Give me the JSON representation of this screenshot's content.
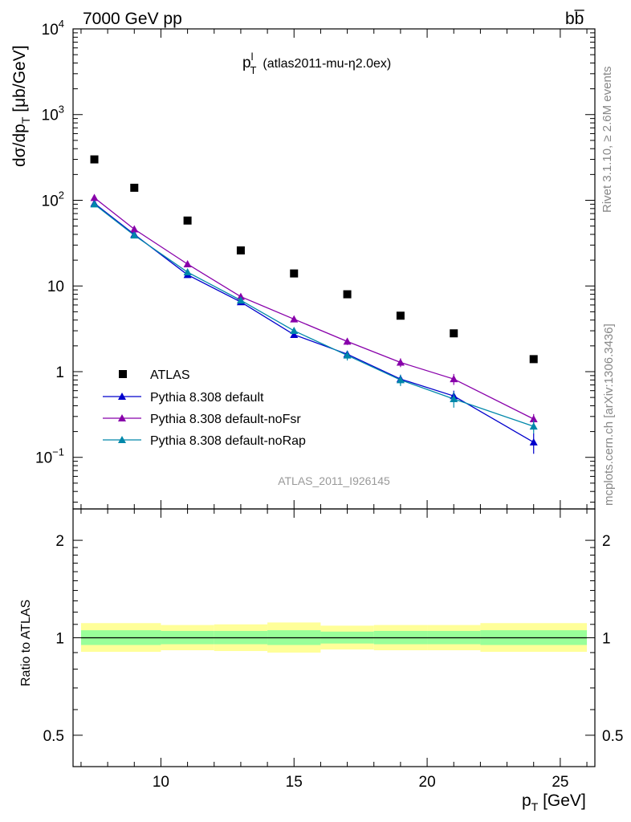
{
  "header": {
    "left": "7000 GeV pp",
    "right": "bb̅"
  },
  "side_text": {
    "rivet": "Rivet 3.1.10, ≥ 2.6M events",
    "mcplots": "mcplots.cern.ch [arXiv:1306.3436]"
  },
  "colors": {
    "atlas": "#000000",
    "default": "#0000cc",
    "noFsr": "#8800aa",
    "noRap": "#0088aa",
    "band_inner": "#99ff99",
    "band_outer": "#ffff99",
    "side_text": "#888888"
  },
  "chart_data": [
    {
      "type": "line",
      "panel": "main",
      "title": "p_T^l (atlas2011-mu-η2.0ex)",
      "title_parts": {
        "base": "p",
        "sub": "T",
        "sup": "l",
        "rest": "(atlas2011-mu-η2.0ex)"
      },
      "ylabel": "dσ/dp_T [μb/GeV]",
      "ylabel_parts": {
        "a": "dσ/dp",
        "sub": "T",
        "b": " [μb/GeV]"
      },
      "analysis_label": "ATLAS_2011_I926145",
      "yscale": "log",
      "ylim": [
        0.025,
        10000
      ],
      "xlim": [
        6.7,
        26.3
      ],
      "y_ticks": [
        {
          "value": 0.1,
          "base": "10",
          "exp": "−1"
        },
        {
          "value": 1,
          "base": "1",
          "exp": ""
        },
        {
          "value": 10,
          "base": "10",
          "exp": ""
        },
        {
          "value": 100,
          "base": "10",
          "exp": "2"
        },
        {
          "value": 1000,
          "base": "10",
          "exp": "3"
        },
        {
          "value": 10000,
          "base": "10",
          "exp": "4"
        }
      ],
      "legend_position": "lower-left",
      "series": [
        {
          "name": "ATLAS",
          "style": "points",
          "marker": "square",
          "color_key": "atlas",
          "x": [
            7.5,
            9,
            11,
            13,
            15,
            17,
            19,
            21,
            24
          ],
          "y": [
            300,
            140,
            58,
            26,
            14,
            8,
            4.5,
            2.8,
            1.4
          ],
          "err": [
            0,
            0,
            0,
            0,
            0,
            0,
            0,
            0,
            0
          ]
        },
        {
          "name": "Pythia 8.308 default",
          "style": "line",
          "marker": "triangle",
          "color_key": "default",
          "x": [
            7.5,
            9,
            11,
            13,
            15,
            17,
            19,
            21,
            24
          ],
          "y": [
            92,
            40,
            13.5,
            6.5,
            2.7,
            1.6,
            0.82,
            0.52,
            0.15
          ],
          "err": [
            2,
            1,
            0.5,
            0.3,
            0.2,
            0.15,
            0.1,
            0.08,
            0.04
          ]
        },
        {
          "name": "Pythia 8.308 default-noFsr",
          "style": "line",
          "marker": "triangle",
          "color_key": "noFsr",
          "x": [
            7.5,
            9,
            11,
            13,
            15,
            17,
            19,
            21,
            24
          ],
          "y": [
            107,
            46,
            18,
            7.5,
            4.1,
            2.25,
            1.28,
            0.82,
            0.28
          ],
          "err": [
            2,
            1,
            0.6,
            0.3,
            0.2,
            0.2,
            0.15,
            0.12,
            0.04
          ]
        },
        {
          "name": "Pythia 8.308 default-noRap",
          "style": "line",
          "marker": "triangle",
          "color_key": "noRap",
          "x": [
            7.5,
            9,
            11,
            13,
            15,
            17,
            19,
            21,
            24
          ],
          "y": [
            90,
            39,
            14.5,
            6.8,
            3.0,
            1.55,
            0.8,
            0.48,
            0.23
          ],
          "err": [
            2,
            1,
            0.5,
            0.3,
            0.25,
            0.2,
            0.12,
            0.1,
            0.04
          ]
        }
      ]
    },
    {
      "type": "area",
      "panel": "ratio",
      "ylabel": "Ratio to ATLAS",
      "xlabel_parts": {
        "base": "p",
        "sub": "T",
        "rest": " [GeV]"
      },
      "yscale": "log",
      "ylim": [
        0.4,
        2.5
      ],
      "xlim": [
        6.7,
        26.3
      ],
      "y_ticks": [
        0.5,
        1,
        2
      ],
      "y_tick_labels": [
        "0.5",
        "1",
        "2"
      ],
      "x_ticks": [
        10,
        15,
        20,
        25
      ],
      "x_tick_labels": [
        "10",
        "15",
        "20",
        "25"
      ],
      "reference": 1,
      "band_bins": [
        {
          "lo": 7,
          "hi": 10,
          "inner": [
            0.95,
            1.055
          ],
          "outer": [
            0.905,
            1.11
          ]
        },
        {
          "lo": 10,
          "hi": 12,
          "inner": [
            0.955,
            1.05
          ],
          "outer": [
            0.915,
            1.095
          ]
        },
        {
          "lo": 12,
          "hi": 14,
          "inner": [
            0.955,
            1.05
          ],
          "outer": [
            0.91,
            1.1
          ]
        },
        {
          "lo": 14,
          "hi": 16,
          "inner": [
            0.95,
            1.055
          ],
          "outer": [
            0.9,
            1.115
          ]
        },
        {
          "lo": 16,
          "hi": 18,
          "inner": [
            0.96,
            1.045
          ],
          "outer": [
            0.92,
            1.09
          ]
        },
        {
          "lo": 18,
          "hi": 20,
          "inner": [
            0.955,
            1.05
          ],
          "outer": [
            0.915,
            1.095
          ]
        },
        {
          "lo": 20,
          "hi": 22,
          "inner": [
            0.955,
            1.05
          ],
          "outer": [
            0.915,
            1.095
          ]
        },
        {
          "lo": 22,
          "hi": 26,
          "inner": [
            0.95,
            1.055
          ],
          "outer": [
            0.905,
            1.11
          ]
        }
      ]
    }
  ]
}
